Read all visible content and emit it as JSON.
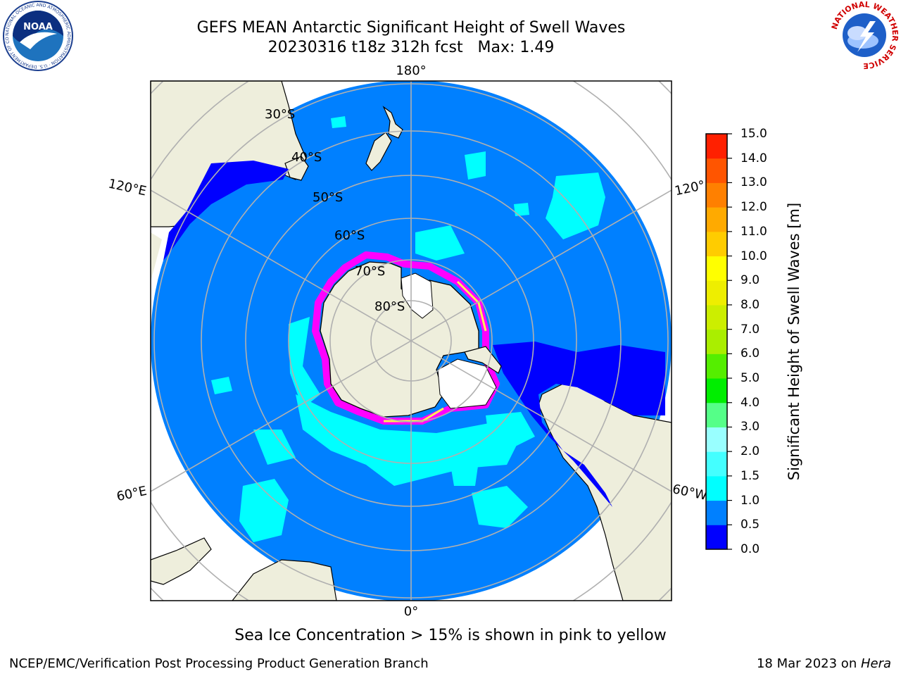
{
  "header": {
    "title_line1": "GEFS MEAN Antarctic Significant Height of Swell Waves",
    "title_line2": "20230316 t18z 312h fcst   Max: 1.49"
  },
  "logos": {
    "noaa": {
      "text": "NOAA",
      "ring_text": "NATIONAL OCEANIC AND ATMOSPHERIC ADMINISTRATION · U.S. DEPARTMENT OF COMMERCE"
    },
    "nws": {
      "ring_text": "NATIONAL WEATHER SERVICE"
    }
  },
  "map": {
    "longitude_labels": {
      "top": "180°",
      "bottom": "0°",
      "upper_left": "120°E",
      "lower_left": "60°E",
      "upper_right": "120°",
      "lower_right": "60°W"
    },
    "latitude_labels": {
      "lat30": "30°S",
      "lat40": "40°S",
      "lat50": "50°S",
      "lat60": "60°S",
      "lat70": "70°S",
      "lat80": "80°S"
    },
    "colors": {
      "land": "#eeeedc",
      "ocean_low": "#0000ff",
      "ocean_main": "#0080ff",
      "swell_cyan": "#00ffff",
      "sea_ice": "#ff00ff",
      "grid": "#b0b0b0"
    }
  },
  "colorbar": {
    "label": "Significant Height of Swell Waves [m]",
    "ticks": [
      "0.0",
      "0.5",
      "1.0",
      "1.5",
      "2.0",
      "3.0",
      "4.0",
      "5.0",
      "6.0",
      "7.0",
      "8.0",
      "9.0",
      "10.0",
      "11.0",
      "12.0",
      "13.0",
      "14.0",
      "15.0"
    ],
    "colors": [
      "#0000ff",
      "#0080ff",
      "#00ffff",
      "#44ffff",
      "#99ffff",
      "#55ff88",
      "#00ee00",
      "#55ee00",
      "#aaee00",
      "#ccee00",
      "#eeee00",
      "#ffff00",
      "#ffcc00",
      "#ffaa00",
      "#ff8000",
      "#ff5500",
      "#ff2000"
    ]
  },
  "footer": {
    "note": "Sea Ice Concentration > 15% is shown in pink to yellow",
    "left": "NCEP/EMC/Verification Post Processing Product Generation Branch",
    "right_prefix": "18 Mar 2023 on ",
    "right_italic": "Hera"
  }
}
